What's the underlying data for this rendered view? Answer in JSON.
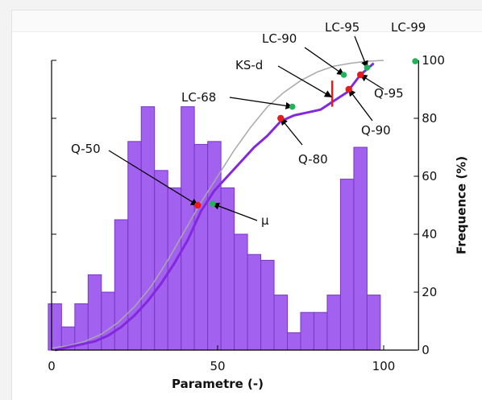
{
  "chart_data": {
    "type": "bar",
    "xlabel": "Parametre (-)",
    "ylabel": "Frequence (%)",
    "xlim": [
      0,
      110
    ],
    "ylim": [
      0,
      100
    ],
    "xticks": [
      0,
      50,
      100
    ],
    "yticks": [
      0,
      20,
      40,
      60,
      80,
      100
    ],
    "histogram": {
      "bin_width": 4,
      "bins": [
        {
          "x": 1,
          "value": 16
        },
        {
          "x": 5,
          "value": 8
        },
        {
          "x": 9,
          "value": 16
        },
        {
          "x": 13,
          "value": 26
        },
        {
          "x": 17,
          "value": 20
        },
        {
          "x": 21,
          "value": 45
        },
        {
          "x": 25,
          "value": 72
        },
        {
          "x": 29,
          "value": 84
        },
        {
          "x": 33,
          "value": 62
        },
        {
          "x": 37,
          "value": 56
        },
        {
          "x": 41,
          "value": 84
        },
        {
          "x": 45,
          "value": 71
        },
        {
          "x": 49,
          "value": 72
        },
        {
          "x": 53,
          "value": 56
        },
        {
          "x": 57,
          "value": 40
        },
        {
          "x": 61,
          "value": 33
        },
        {
          "x": 65,
          "value": 31
        },
        {
          "x": 69,
          "value": 19
        },
        {
          "x": 73,
          "value": 6
        },
        {
          "x": 77,
          "value": 13
        },
        {
          "x": 81,
          "value": 13
        },
        {
          "x": 85,
          "value": 19
        },
        {
          "x": 89,
          "value": 59
        },
        {
          "x": 93,
          "value": 70
        },
        {
          "x": 97,
          "value": 19
        }
      ]
    },
    "empirical_cdf": [
      [
        1,
        0
      ],
      [
        5,
        1
      ],
      [
        9,
        2
      ],
      [
        13,
        3
      ],
      [
        17,
        5
      ],
      [
        21,
        8
      ],
      [
        25,
        12
      ],
      [
        29,
        17
      ],
      [
        33,
        23
      ],
      [
        37,
        30
      ],
      [
        41,
        38
      ],
      [
        45,
        48
      ],
      [
        49,
        55
      ],
      [
        53,
        60
      ],
      [
        57,
        65
      ],
      [
        61,
        70
      ],
      [
        65,
        74
      ],
      [
        69,
        79
      ],
      [
        73,
        81
      ],
      [
        77,
        82
      ],
      [
        81,
        83
      ],
      [
        85,
        86
      ],
      [
        89,
        89
      ],
      [
        93,
        95
      ],
      [
        97,
        99
      ]
    ],
    "fitted_cdf": [
      [
        0,
        0.7
      ],
      [
        5,
        1.5
      ],
      [
        10,
        3
      ],
      [
        15,
        5.5
      ],
      [
        20,
        9.5
      ],
      [
        25,
        15
      ],
      [
        30,
        22
      ],
      [
        35,
        31
      ],
      [
        40,
        41
      ],
      [
        45,
        51
      ],
      [
        50,
        60
      ],
      [
        55,
        69
      ],
      [
        60,
        77
      ],
      [
        65,
        84
      ],
      [
        70,
        89
      ],
      [
        75,
        93
      ],
      [
        80,
        96
      ],
      [
        85,
        98
      ],
      [
        90,
        99
      ],
      [
        95,
        99.7
      ],
      [
        100,
        100
      ]
    ],
    "quantiles": [
      {
        "label": "Q-50",
        "x": 44,
        "y": 50
      },
      {
        "label": "Q-80",
        "x": 69,
        "y": 80
      },
      {
        "label": "Q-90",
        "x": 89.5,
        "y": 90
      },
      {
        "label": "Q-95",
        "x": 93,
        "y": 95
      }
    ],
    "fit_points": [
      {
        "label": "μ",
        "x": 48.5,
        "y": 50.5
      },
      {
        "label": "LC-68",
        "x": 72.5,
        "y": 84
      },
      {
        "label": "LC-90",
        "x": 88,
        "y": 95
      },
      {
        "label": "LC-95",
        "x": 95,
        "y": 97.5
      },
      {
        "label": "LC-99",
        "x": 109.5,
        "y": 99.7
      }
    ],
    "ks_d": {
      "label": "KS-d",
      "x": 84.5,
      "y_low": 84,
      "y_high": 93
    },
    "colors": {
      "bars": "#a361f0",
      "bar_edge": "#7b36c7",
      "empirical_cdf": "#8229e0",
      "fitted_cdf": "#a9a9a9",
      "quantile_points": "#e81b1b",
      "fit_points": "#1fb457",
      "ks_line": "#e81b1b"
    }
  }
}
